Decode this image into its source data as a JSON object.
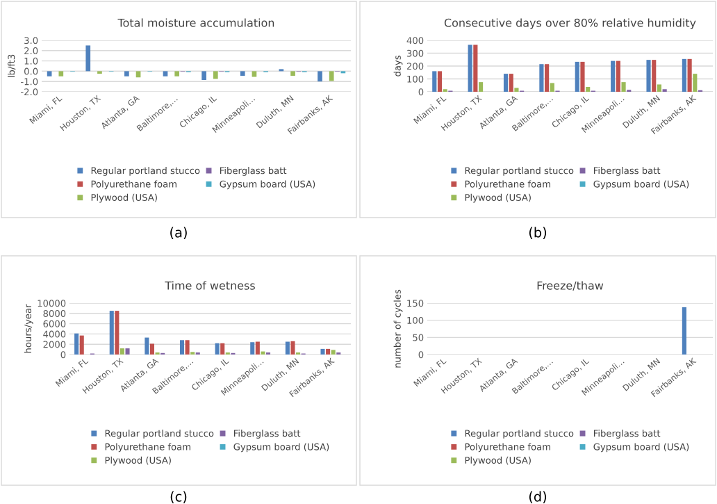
{
  "chart_data": [
    {
      "type": "bar",
      "title": "Total moisture accumulation",
      "ylabel": "lb/ft3",
      "categories": [
        "Miami, FL",
        "Houston, TX",
        "Atlanta, GA",
        "Baltimore,…",
        "Chicago, IL",
        "Minneapoli…",
        "Duluth, MN",
        "Fairbanks, AK"
      ],
      "series": [
        {
          "name": "Regular portland stucco",
          "color": "#4f81bd",
          "values": [
            -0.5,
            2.5,
            -0.5,
            -0.5,
            -0.85,
            -0.45,
            0.2,
            -1.0
          ]
        },
        {
          "name": "Polyurethane foam",
          "color": "#c0504d",
          "values": [
            0,
            0,
            0,
            0,
            0,
            0,
            0,
            0
          ]
        },
        {
          "name": "Plywood (USA)",
          "color": "#9bbb59",
          "values": [
            -0.5,
            -0.25,
            -0.6,
            -0.5,
            -0.75,
            -0.55,
            -0.45,
            -0.95
          ]
        },
        {
          "name": "Fiberglass batt",
          "color": "#8064a2",
          "values": [
            0,
            0,
            0,
            -0.05,
            -0.05,
            0,
            -0.05,
            -0.05
          ]
        },
        {
          "name": "Gypsum board (USA)",
          "color": "#4bacc6",
          "values": [
            -0.05,
            -0.05,
            -0.05,
            -0.1,
            -0.1,
            -0.1,
            -0.1,
            -0.2
          ]
        }
      ],
      "ylim": [
        -2,
        3
      ],
      "yticks": [
        {
          "value": -2,
          "label": "-2.0"
        },
        {
          "value": -1,
          "label": "-1.0"
        },
        {
          "value": 0,
          "label": "0.0"
        },
        {
          "value": 1,
          "label": "1.0"
        },
        {
          "value": 2,
          "label": "2.0"
        },
        {
          "value": 3,
          "label": "3.0"
        }
      ],
      "grid": "y",
      "legend": "bottom",
      "annotations": [
        "(a)"
      ]
    },
    {
      "type": "bar",
      "title": "Consecutive days over 80% relative humidity",
      "ylabel": "days",
      "categories": [
        "Miami, FL",
        "Houston, TX",
        "Atlanta, GA",
        "Baltimore,…",
        "Chicago, IL",
        "Minneapoli…",
        "Duluth, MN",
        "Fairbanks, AK"
      ],
      "series": [
        {
          "name": "Regular portland stucco",
          "color": "#4f81bd",
          "values": [
            160,
            365,
            140,
            215,
            233,
            240,
            248,
            255
          ]
        },
        {
          "name": "Polyurethane foam",
          "color": "#c0504d",
          "values": [
            160,
            365,
            140,
            215,
            233,
            240,
            248,
            255
          ]
        },
        {
          "name": "Plywood (USA)",
          "color": "#9bbb59",
          "values": [
            20,
            75,
            30,
            68,
            38,
            75,
            57,
            140
          ]
        },
        {
          "name": "Fiberglass batt",
          "color": "#8064a2",
          "values": [
            8,
            0,
            8,
            8,
            8,
            15,
            20,
            12
          ]
        },
        {
          "name": "Gypsum board (USA)",
          "color": "#4bacc6",
          "values": [
            0,
            0,
            0,
            0,
            0,
            0,
            0,
            0
          ]
        }
      ],
      "ylim": [
        0,
        400
      ],
      "yticks": [
        0,
        100,
        200,
        300,
        400
      ],
      "grid": "y",
      "legend": "bottom",
      "annotations": [
        "(b)"
      ]
    },
    {
      "type": "bar",
      "title": "Time of wetness",
      "ylabel": "hours/year",
      "categories": [
        "Miami, FL",
        "Houston, TX",
        "Atlanta, GA",
        "Baltimore,…",
        "Chicago, IL",
        "Minneapoli…",
        "Duluth, MN",
        "Fairbanks, AK"
      ],
      "series": [
        {
          "name": "Regular portland stucco",
          "color": "#4f81bd",
          "values": [
            4100,
            8500,
            3300,
            2800,
            2200,
            2400,
            2500,
            1100
          ]
        },
        {
          "name": "Polyurethane foam",
          "color": "#c0504d",
          "values": [
            3700,
            8500,
            2100,
            2800,
            2200,
            2500,
            2600,
            1100
          ]
        },
        {
          "name": "Plywood (USA)",
          "color": "#9bbb59",
          "values": [
            0,
            1200,
            400,
            500,
            400,
            600,
            400,
            900
          ]
        },
        {
          "name": "Fiberglass batt",
          "color": "#8064a2",
          "values": [
            200,
            1200,
            300,
            400,
            300,
            400,
            200,
            400
          ]
        },
        {
          "name": "Gypsum board (USA)",
          "color": "#4bacc6",
          "values": [
            0,
            0,
            0,
            0,
            0,
            0,
            0,
            0
          ]
        }
      ],
      "ylim": [
        0,
        10000
      ],
      "yticks": [
        0,
        2000,
        4000,
        6000,
        8000,
        10000
      ],
      "grid": "y",
      "legend": "bottom",
      "annotations": [
        "(c)"
      ]
    },
    {
      "type": "bar",
      "title": "Freeze/thaw",
      "ylabel": "number of cycles",
      "categories": [
        "Miami, FL",
        "Houston, TX",
        "Atlanta, GA",
        "Baltimore,…",
        "Chicago, IL",
        "Minneapoli…",
        "Duluth, MN",
        "Fairbanks, AK"
      ],
      "series": [
        {
          "name": "Regular portland stucco",
          "color": "#4f81bd",
          "values": [
            0,
            0,
            0,
            0,
            0,
            0,
            0,
            138
          ]
        },
        {
          "name": "Polyurethane foam",
          "color": "#c0504d",
          "values": [
            0,
            0,
            0,
            0,
            0,
            0,
            0,
            0
          ]
        },
        {
          "name": "Plywood (USA)",
          "color": "#9bbb59",
          "values": [
            0,
            0,
            0,
            0,
            0,
            0,
            0,
            0
          ]
        },
        {
          "name": "Fiberglass batt",
          "color": "#8064a2",
          "values": [
            0,
            0,
            0,
            0,
            0,
            0,
            0,
            0
          ]
        },
        {
          "name": "Gypsum board (USA)",
          "color": "#4bacc6",
          "values": [
            0,
            0,
            0,
            0,
            0,
            0,
            0,
            0
          ]
        }
      ],
      "ylim": [
        0,
        150
      ],
      "yticks": [
        0,
        50,
        100,
        150
      ],
      "grid": "y",
      "legend": "bottom",
      "annotations": [
        "(d)"
      ]
    }
  ]
}
